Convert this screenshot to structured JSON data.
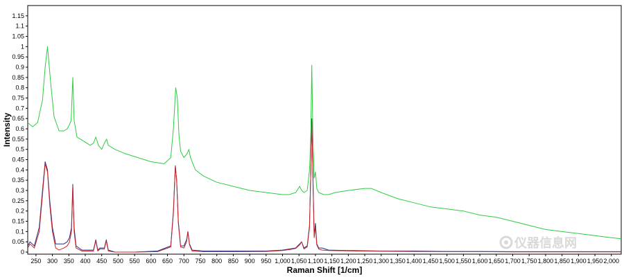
{
  "chart_data": {
    "type": "line",
    "xlabel": "Raman Shift [1/cm]",
    "ylabel": "Intensity",
    "xlim": [
      225,
      2030
    ],
    "ylim": [
      -0.01,
      1.2
    ],
    "x_ticks": [
      250,
      300,
      350,
      400,
      450,
      500,
      550,
      600,
      650,
      700,
      750,
      800,
      850,
      900,
      950,
      1000,
      1050,
      1100,
      1150,
      1200,
      1250,
      1300,
      1350,
      1400,
      1450,
      1500,
      1550,
      1600,
      1650,
      1700,
      1750,
      1800,
      1850,
      1900,
      1950,
      2000
    ],
    "x_tick_labels": [
      "250",
      "300",
      "350",
      "400",
      "450",
      "500",
      "550",
      "600",
      "650",
      "700",
      "750",
      "800",
      "850",
      "900",
      "950",
      "1,000",
      "1,050",
      "1,100",
      "1,150",
      "1,200",
      "1,250",
      "1,300",
      "1,350",
      "1,400",
      "1,450",
      "1,500",
      "1,550",
      "1,600",
      "1,650",
      "1,700",
      "1,750",
      "1,800",
      "1,850",
      "1,900",
      "1,950",
      "2,000"
    ],
    "y_ticks": [
      0,
      0.05,
      0.1,
      0.15,
      0.2,
      0.25,
      0.3,
      0.35,
      0.4,
      0.45,
      0.5,
      0.55,
      0.6,
      0.65,
      0.7,
      0.75,
      0.8,
      0.85,
      0.9,
      0.95,
      1,
      1.05,
      1.1,
      1.15
    ],
    "y_tick_labels": [
      "0",
      "0.05",
      "0.1",
      "0.15",
      "0.2",
      "0.25",
      "0.3",
      "0.35",
      "0.4",
      "0.45",
      "0.5",
      "0.55",
      "0.6",
      "0.65",
      "0.7",
      "0.75",
      "0.8",
      "0.85",
      "0.9",
      "0.95",
      "1",
      "1.05",
      "1.1",
      "1.15"
    ],
    "grid": false,
    "legend": "none",
    "series": [
      {
        "color": "#2ecc40",
        "x": [
          225,
          240,
          255,
          270,
          278,
          285,
          295,
          305,
          320,
          335,
          345,
          352,
          357,
          362,
          366,
          375,
          395,
          415,
          425,
          432,
          440,
          450,
          458,
          465,
          470,
          490,
          520,
          560,
          600,
          640,
          660,
          668,
          675,
          680,
          685,
          690,
          700,
          710,
          715,
          720,
          735,
          760,
          800,
          850,
          900,
          950,
          1000,
          1020,
          1040,
          1052,
          1058,
          1065,
          1075,
          1082,
          1086,
          1089,
          1092,
          1096,
          1100,
          1104,
          1110,
          1125,
          1140,
          1160,
          1200,
          1250,
          1270,
          1300,
          1350,
          1400,
          1450,
          1500,
          1550,
          1600,
          1650,
          1700,
          1750,
          1800,
          1850,
          1900,
          1950,
          2000,
          2030
        ],
        "y": [
          0.63,
          0.61,
          0.63,
          0.74,
          0.9,
          1.0,
          0.82,
          0.66,
          0.59,
          0.59,
          0.6,
          0.62,
          0.64,
          0.85,
          0.64,
          0.56,
          0.54,
          0.52,
          0.53,
          0.56,
          0.52,
          0.5,
          0.53,
          0.55,
          0.52,
          0.5,
          0.48,
          0.46,
          0.44,
          0.43,
          0.46,
          0.6,
          0.8,
          0.75,
          0.57,
          0.49,
          0.46,
          0.48,
          0.5,
          0.46,
          0.4,
          0.37,
          0.34,
          0.32,
          0.3,
          0.29,
          0.28,
          0.28,
          0.29,
          0.32,
          0.3,
          0.29,
          0.3,
          0.4,
          0.58,
          0.91,
          0.58,
          0.36,
          0.39,
          0.31,
          0.29,
          0.28,
          0.28,
          0.29,
          0.3,
          0.31,
          0.31,
          0.29,
          0.26,
          0.24,
          0.22,
          0.21,
          0.2,
          0.18,
          0.17,
          0.15,
          0.13,
          0.11,
          0.1,
          0.09,
          0.08,
          0.07,
          0.065
        ]
      },
      {
        "color": "#1f2f8f",
        "x": [
          225,
          232,
          245,
          260,
          270,
          278,
          285,
          292,
          300,
          310,
          320,
          335,
          345,
          352,
          358,
          362,
          366,
          372,
          390,
          410,
          425,
          432,
          438,
          445,
          458,
          464,
          470,
          490,
          550,
          620,
          660,
          668,
          674,
          678,
          683,
          690,
          700,
          708,
          712,
          717,
          725,
          760,
          850,
          950,
          1000,
          1020,
          1040,
          1052,
          1058,
          1065,
          1075,
          1082,
          1086,
          1089,
          1092,
          1096,
          1100,
          1104,
          1110,
          1120,
          1140,
          1200,
          1300,
          1400,
          1500,
          1600,
          1700,
          1800,
          1900,
          2000,
          2030
        ],
        "y": [
          0.03,
          0.05,
          0.03,
          0.12,
          0.3,
          0.44,
          0.4,
          0.25,
          0.12,
          0.04,
          0.04,
          0.04,
          0.05,
          0.07,
          0.12,
          0.33,
          0.12,
          0.03,
          0.01,
          0.01,
          0.01,
          0.06,
          0.01,
          0.02,
          0.02,
          0.06,
          0.01,
          0.0,
          0.0,
          0.005,
          0.03,
          0.2,
          0.42,
          0.35,
          0.15,
          0.03,
          0.03,
          0.06,
          0.1,
          0.04,
          0.01,
          0.005,
          0.005,
          0.005,
          0.01,
          0.015,
          0.02,
          0.04,
          0.05,
          0.02,
          0.03,
          0.13,
          0.4,
          0.65,
          0.4,
          0.08,
          0.14,
          0.04,
          0.02,
          0.02,
          0.01,
          0.008,
          0.005,
          0.005,
          0.003,
          0.003,
          0.002,
          0.002,
          0.002,
          0.002,
          0.002
        ]
      },
      {
        "color": "#cc2222",
        "x": [
          225,
          232,
          245,
          260,
          270,
          278,
          285,
          292,
          300,
          310,
          320,
          335,
          345,
          352,
          358,
          362,
          366,
          372,
          390,
          410,
          425,
          432,
          438,
          445,
          458,
          464,
          470,
          490,
          550,
          620,
          660,
          668,
          674,
          678,
          683,
          690,
          700,
          708,
          712,
          717,
          725,
          760,
          850,
          950,
          1000,
          1020,
          1040,
          1052,
          1058,
          1065,
          1075,
          1082,
          1086,
          1089,
          1092,
          1096,
          1100,
          1104,
          1110,
          1120,
          1140,
          1200,
          1300,
          1400,
          1500,
          1600,
          1700,
          1800,
          1900,
          2000,
          2030
        ],
        "y": [
          0.02,
          0.04,
          0.02,
          0.1,
          0.28,
          0.43,
          0.39,
          0.23,
          0.1,
          0.02,
          0.01,
          0.02,
          0.03,
          0.05,
          0.1,
          0.32,
          0.1,
          0.02,
          0.005,
          0.005,
          0.005,
          0.055,
          0.005,
          0.015,
          0.015,
          0.055,
          0.005,
          0.0,
          0.0,
          0.002,
          0.025,
          0.19,
          0.42,
          0.35,
          0.14,
          0.025,
          0.02,
          0.05,
          0.1,
          0.035,
          0.005,
          0.002,
          0.002,
          0.003,
          0.008,
          0.012,
          0.018,
          0.035,
          0.05,
          0.015,
          0.025,
          0.12,
          0.4,
          0.63,
          0.38,
          0.07,
          0.12,
          0.035,
          0.015,
          0.01,
          0.008,
          0.006,
          0.004,
          0.003,
          0.002,
          0.002,
          0.001,
          0.001,
          0.001,
          0.001,
          0.001
        ]
      }
    ]
  },
  "watermark": {
    "text": "仪器信息网",
    "logo_icon": "gear-icon"
  }
}
